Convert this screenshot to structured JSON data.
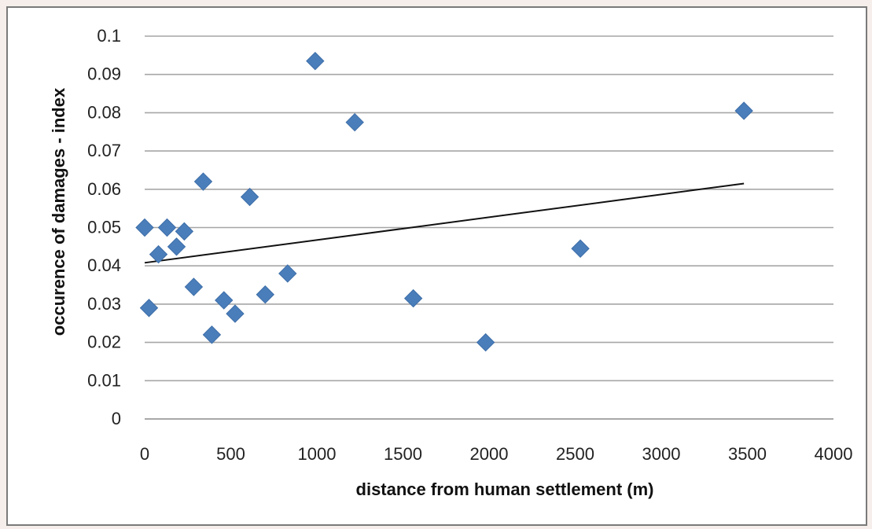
{
  "chart_data": {
    "type": "scatter",
    "title": "",
    "xlabel": "distance from human settlement (m)",
    "ylabel": "occurence of damages - index",
    "xlim": [
      0,
      4000
    ],
    "ylim": [
      0,
      0.1
    ],
    "x_ticks": [
      0,
      500,
      1000,
      1500,
      2000,
      2500,
      3000,
      3500,
      4000
    ],
    "x_tick_labels": [
      "0",
      "500",
      "1000",
      "1500",
      "2000",
      "2500",
      "3000",
      "3500",
      "4000"
    ],
    "y_ticks": [
      0,
      0.01,
      0.02,
      0.03,
      0.04,
      0.05,
      0.06,
      0.07,
      0.08,
      0.09,
      0.1
    ],
    "y_tick_labels": [
      "0",
      "0.01",
      "0.02",
      "0.03",
      "0.04",
      "0.05",
      "0.06",
      "0.07",
      "0.08",
      "0.09",
      "0.1"
    ],
    "grid": {
      "horizontal": true,
      "vertical": false
    },
    "legend": "none",
    "marker": {
      "shape": "diamond",
      "color": "#4a7ebb"
    },
    "points": [
      {
        "x": 0,
        "y": 0.05
      },
      {
        "x": 25,
        "y": 0.029
      },
      {
        "x": 80,
        "y": 0.043
      },
      {
        "x": 130,
        "y": 0.05
      },
      {
        "x": 185,
        "y": 0.045
      },
      {
        "x": 230,
        "y": 0.049
      },
      {
        "x": 285,
        "y": 0.0345
      },
      {
        "x": 340,
        "y": 0.062
      },
      {
        "x": 390,
        "y": 0.022
      },
      {
        "x": 460,
        "y": 0.031
      },
      {
        "x": 525,
        "y": 0.0275
      },
      {
        "x": 610,
        "y": 0.058
      },
      {
        "x": 700,
        "y": 0.0325
      },
      {
        "x": 830,
        "y": 0.038
      },
      {
        "x": 990,
        "y": 0.0935
      },
      {
        "x": 1220,
        "y": 0.0775
      },
      {
        "x": 1560,
        "y": 0.0315
      },
      {
        "x": 1980,
        "y": 0.02
      },
      {
        "x": 2530,
        "y": 0.0445
      },
      {
        "x": 3480,
        "y": 0.0805
      }
    ],
    "trendline": {
      "type": "linear",
      "color": "#111111",
      "from": {
        "x": 0,
        "y": 0.0408
      },
      "to": {
        "x": 3480,
        "y": 0.0615
      }
    }
  }
}
